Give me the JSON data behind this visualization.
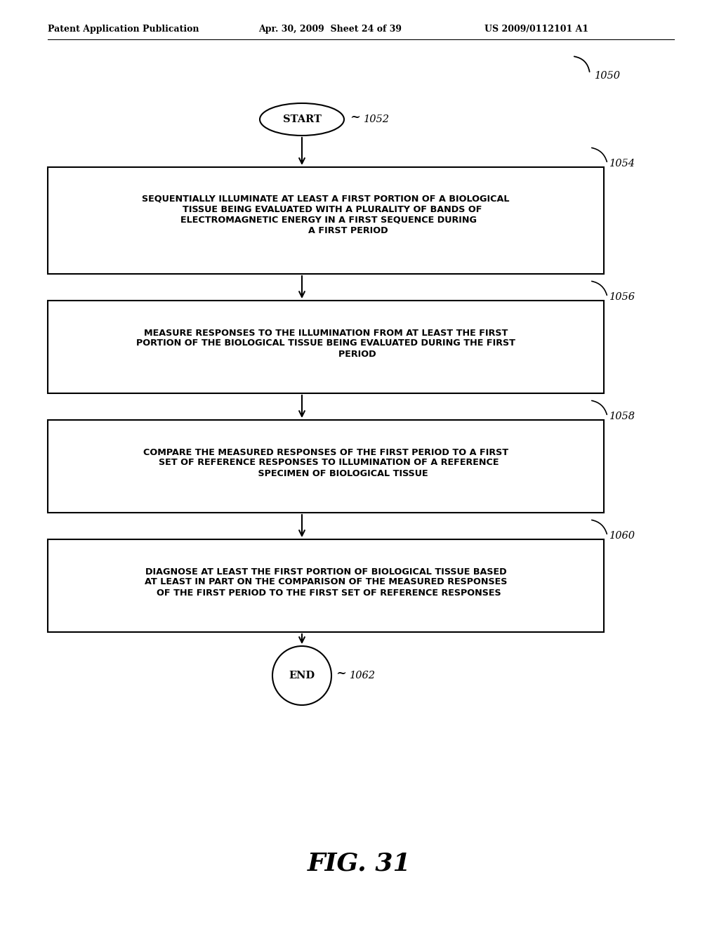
{
  "bg_color": "#ffffff",
  "header_left": "Patent Application Publication",
  "header_mid": "Apr. 30, 2009  Sheet 24 of 39",
  "header_right": "US 2009/0112101 A1",
  "fig_label": "FIG. 31",
  "diagram_ref": "1050",
  "start_label": "START",
  "start_ref": "1052",
  "end_label": "END",
  "end_ref": "1062",
  "boxes": [
    {
      "ref": "1054",
      "text": "SEQUENTIALLY ILLUMINATE AT LEAST A FIRST PORTION OF A BIOLOGICAL\n    TISSUE BEING EVALUATED WITH A PLURALITY OF BANDS OF\n  ELECTROMAGNETIC ENERGY IN A FIRST SEQUENCE DURING\n              A FIRST PERIOD"
    },
    {
      "ref": "1056",
      "text": "MEASURE RESPONSES TO THE ILLUMINATION FROM AT LEAST THE FIRST\nPORTION OF THE BIOLOGICAL TISSUE BEING EVALUATED DURING THE FIRST\n                    PERIOD"
    },
    {
      "ref": "1058",
      "text": "COMPARE THE MEASURED RESPONSES OF THE FIRST PERIOD TO A FIRST\n  SET OF REFERENCE RESPONSES TO ILLUMINATION OF A REFERENCE\n           SPECIMEN OF BIOLOGICAL TISSUE"
    },
    {
      "ref": "1060",
      "text": "DIAGNOSE AT LEAST THE FIRST PORTION OF BIOLOGICAL TISSUE BASED\nAT LEAST IN PART ON THE COMPARISON OF THE MEASURED RESPONSES\n  OF THE FIRST PERIOD TO THE FIRST SET OF REFERENCE RESPONSES"
    }
  ]
}
